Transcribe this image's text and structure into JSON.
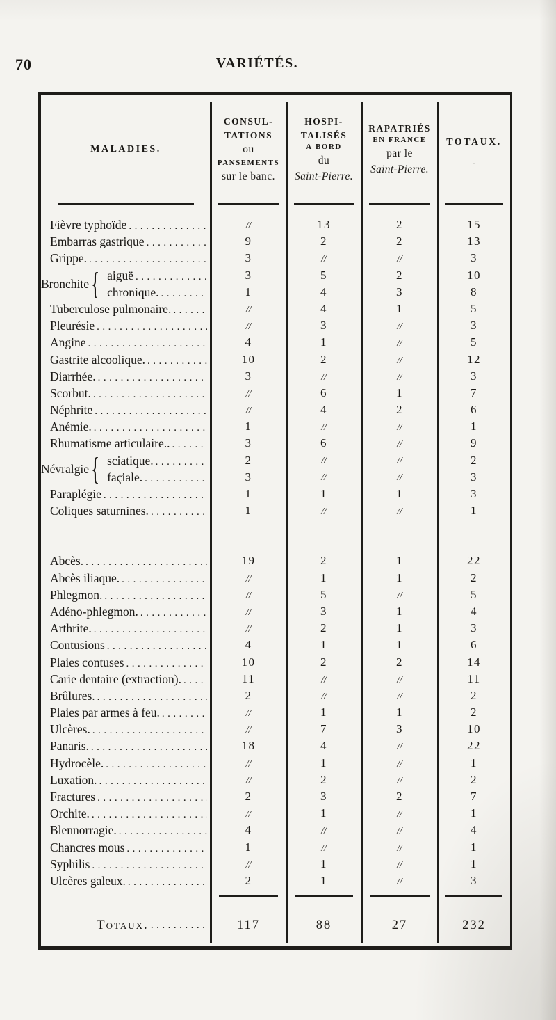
{
  "page": {
    "number": "70",
    "running_title": "VARIÉTÉS."
  },
  "table": {
    "leader_dots": "............................................................",
    "nil_symbol": "//",
    "header": {
      "col_maladies": "MALADIES.",
      "col_consult": {
        "l1": "CONSUL-",
        "l2": "TATIONS",
        "l3": "ou",
        "l4": "PANSEMENTS",
        "l5": "sur le banc."
      },
      "col_hosp": {
        "l1": "HOSPI-",
        "l2": "TALISÉS",
        "l3": "À BORD",
        "l4": "du",
        "l5": "Saint-Pierre."
      },
      "col_rapat": {
        "l1": "RAPATRIÉS",
        "l2": "EN FRANCE",
        "l3": "par le",
        "l4": "Saint-Pierre."
      },
      "col_totaux": "TOTAUX.",
      "totaux_mark": "."
    },
    "rows": [
      {
        "type": "r",
        "label": "Fièvre typhoïde",
        "values": [
          "//",
          "13",
          "2",
          "15"
        ]
      },
      {
        "type": "r",
        "label": "Embarras gastrique",
        "values": [
          "9",
          "2",
          "2",
          "13"
        ]
      },
      {
        "type": "r",
        "label": "Grippe.",
        "values": [
          "3",
          "//",
          "//",
          "3"
        ]
      },
      {
        "type": "g",
        "name": "Bronchite",
        "subs": [
          {
            "label": "aiguë",
            "values": [
              "3",
              "5",
              "2",
              "10"
            ]
          },
          {
            "label": "chronique.",
            "values": [
              "1",
              "4",
              "3",
              "8"
            ]
          }
        ]
      },
      {
        "type": "r",
        "label": "Tuberculose pulmonaire.",
        "values": [
          "//",
          "4",
          "1",
          "5"
        ]
      },
      {
        "type": "r",
        "label": "Pleurésie",
        "values": [
          "//",
          "3",
          "//",
          "3"
        ]
      },
      {
        "type": "r",
        "label": "Angine",
        "values": [
          "4",
          "1",
          "//",
          "5"
        ]
      },
      {
        "type": "r",
        "label": "Gastrite alcoolique.",
        "values": [
          "10",
          "2",
          "//",
          "12"
        ]
      },
      {
        "type": "r",
        "label": "Diarrhée.",
        "values": [
          "3",
          "//",
          "//",
          "3"
        ]
      },
      {
        "type": "r",
        "label": "Scorbut.",
        "values": [
          "//",
          "6",
          "1",
          "7"
        ]
      },
      {
        "type": "r",
        "label": "Néphrite",
        "values": [
          "//",
          "4",
          "2",
          "6"
        ]
      },
      {
        "type": "r",
        "label": "Anémie.",
        "values": [
          "1",
          "//",
          "//",
          "1"
        ]
      },
      {
        "type": "r",
        "label": "Rhumatisme articulaire..",
        "values": [
          "3",
          "6",
          "//",
          "9"
        ]
      },
      {
        "type": "g",
        "name": "Névralgie",
        "subs": [
          {
            "label": "sciatique.",
            "values": [
              "2",
              "//",
              "//",
              "2"
            ]
          },
          {
            "label": "façiale.",
            "values": [
              "3",
              "//",
              "//",
              "3"
            ]
          }
        ]
      },
      {
        "type": "r",
        "label": "Paraplégie",
        "values": [
          "1",
          "1",
          "1",
          "3"
        ]
      },
      {
        "type": "r",
        "label": "Coliques saturnines.",
        "values": [
          "1",
          "//",
          "//",
          "1"
        ]
      },
      {
        "type": "gap"
      },
      {
        "type": "r",
        "label": "Abcès.",
        "values": [
          "19",
          "2",
          "1",
          "22"
        ]
      },
      {
        "type": "r",
        "label": "Abcès iliaque.",
        "values": [
          "//",
          "1",
          "1",
          "2"
        ]
      },
      {
        "type": "r",
        "label": "Phlegmon.",
        "values": [
          "//",
          "5",
          "//",
          "5"
        ]
      },
      {
        "type": "r",
        "label": "Adéno-phlegmon.",
        "values": [
          "//",
          "3",
          "1",
          "4"
        ]
      },
      {
        "type": "r",
        "label": "Arthrite.",
        "values": [
          "//",
          "2",
          "1",
          "3"
        ]
      },
      {
        "type": "r",
        "label": "Contusions",
        "values": [
          "4",
          "1",
          "1",
          "6"
        ]
      },
      {
        "type": "r",
        "label": "Plaies contuses",
        "values": [
          "10",
          "2",
          "2",
          "14"
        ]
      },
      {
        "type": "r",
        "label": "Carie dentaire (extraction).",
        "values": [
          "11",
          "//",
          "//",
          "11"
        ]
      },
      {
        "type": "r",
        "label": "Brûlures.",
        "values": [
          "2",
          "//",
          "//",
          "2"
        ]
      },
      {
        "type": "r",
        "label": "Plaies par armes à feu.",
        "values": [
          "//",
          "1",
          "1",
          "2"
        ]
      },
      {
        "type": "r",
        "label": "Ulcères.",
        "values": [
          "//",
          "7",
          "3",
          "10"
        ]
      },
      {
        "type": "r",
        "label": "Panaris.",
        "values": [
          "18",
          "4",
          "//",
          "22"
        ]
      },
      {
        "type": "r",
        "label": "Hydrocèle.",
        "values": [
          "//",
          "1",
          "//",
          "1"
        ]
      },
      {
        "type": "r",
        "label": "Luxation.",
        "values": [
          "//",
          "2",
          "//",
          "2"
        ]
      },
      {
        "type": "r",
        "label": "Fractures",
        "values": [
          "2",
          "3",
          "2",
          "7"
        ]
      },
      {
        "type": "r",
        "label": "Orchite.",
        "values": [
          "//",
          "1",
          "//",
          "1"
        ]
      },
      {
        "type": "r",
        "label": "Blennorragie.",
        "values": [
          "4",
          "//",
          "//",
          "4"
        ]
      },
      {
        "type": "r",
        "label": "Chancres mous",
        "values": [
          "1",
          "//",
          "//",
          "1"
        ]
      },
      {
        "type": "r",
        "label": "Syphilis",
        "values": [
          "//",
          "1",
          "//",
          "1"
        ]
      },
      {
        "type": "r",
        "label": "Ulcères galeux.",
        "values": [
          "2",
          "1",
          "//",
          "3"
        ]
      }
    ],
    "totals": {
      "label": "Totaux.",
      "values": [
        "117",
        "88",
        "27",
        "232"
      ]
    }
  }
}
